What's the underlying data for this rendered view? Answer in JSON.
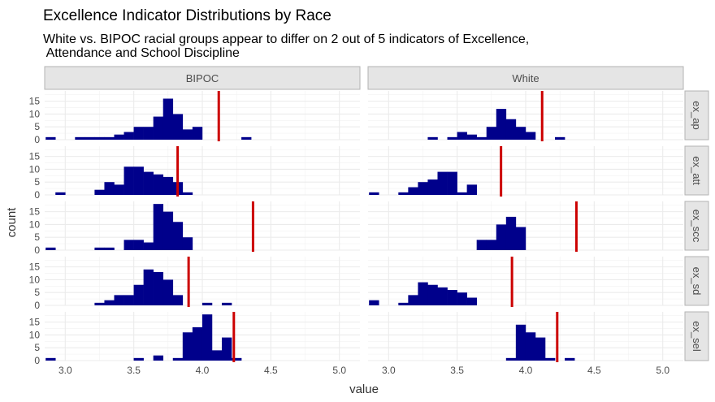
{
  "chart_data": {
    "type": "bar",
    "title": "Excellence Indicator Distributions by Race",
    "subtitle": [
      "White vs. BIPOC racial groups appear to differ on 2 out of 5 indicators of Excellence,",
      " Attendance and School Discipline"
    ],
    "xlabel": "value",
    "ylabel": "count",
    "columns": [
      "BIPOC",
      "White"
    ],
    "rows": [
      "ex_ap",
      "ex_att",
      "ex_scc",
      "ex_sd",
      "ex_sel"
    ],
    "xlim": [
      2.85,
      5.15
    ],
    "ylim": [
      0,
      19
    ],
    "x_ticks": [
      3.0,
      3.5,
      4.0,
      4.5,
      5.0
    ],
    "x_tick_labels": [
      "3.0",
      "3.5",
      "4.0",
      "4.5",
      "5.0"
    ],
    "y_ticks": [
      0,
      5,
      10,
      15
    ],
    "bin_width": 0.0714,
    "bin_start": 2.857,
    "grid": true,
    "bar_color": "#00008B",
    "mean_line_color": "#CC0000",
    "panels": [
      {
        "row": "ex_ap",
        "col": "BIPOC",
        "mean": 4.12,
        "counts": [
          1,
          0,
          0,
          1,
          1,
          1,
          1,
          2,
          3,
          5,
          5,
          9,
          16,
          10,
          4,
          5,
          0,
          0,
          0,
          0,
          1,
          0,
          0
        ]
      },
      {
        "row": "ex_ap",
        "col": "White",
        "mean": 4.12,
        "counts": [
          0,
          0,
          0,
          0,
          0,
          0,
          1,
          0,
          1,
          3,
          2,
          1,
          5,
          12,
          8,
          5,
          3,
          0,
          0,
          1,
          0,
          0,
          0
        ]
      },
      {
        "row": "ex_att",
        "col": "BIPOC",
        "mean": 3.82,
        "counts": [
          0,
          1,
          0,
          0,
          0,
          2,
          5,
          4,
          11,
          11,
          9,
          8,
          7,
          5,
          1,
          0,
          0,
          0,
          0,
          0,
          0,
          0,
          0
        ]
      },
      {
        "row": "ex_att",
        "col": "White",
        "mean": 3.82,
        "counts": [
          1,
          0,
          0,
          1,
          3,
          5,
          6,
          9,
          9,
          1,
          4,
          0,
          0,
          0,
          0,
          0,
          0,
          0,
          0,
          0,
          0,
          0,
          0
        ]
      },
      {
        "row": "ex_scc",
        "col": "BIPOC",
        "mean": 4.37,
        "counts": [
          1,
          0,
          0,
          0,
          0,
          1,
          1,
          0,
          4,
          4,
          3,
          18,
          15,
          11,
          5,
          0,
          0,
          0,
          0,
          0,
          0,
          0,
          0
        ]
      },
      {
        "row": "ex_scc",
        "col": "White",
        "mean": 4.37,
        "counts": [
          0,
          0,
          0,
          0,
          0,
          0,
          0,
          0,
          0,
          0,
          0,
          4,
          4,
          10,
          13,
          9,
          0,
          0,
          0,
          0,
          0,
          0,
          0
        ]
      },
      {
        "row": "ex_sd",
        "col": "BIPOC",
        "mean": 3.9,
        "counts": [
          0,
          0,
          0,
          0,
          0,
          1,
          2,
          4,
          4,
          8,
          14,
          13,
          10,
          4,
          0,
          0,
          1,
          0,
          1,
          0,
          0,
          0,
          0
        ]
      },
      {
        "row": "ex_sd",
        "col": "White",
        "mean": 3.9,
        "counts": [
          2,
          0,
          0,
          1,
          4,
          9,
          8,
          7,
          6,
          5,
          3,
          0,
          0,
          0,
          0,
          0,
          0,
          0,
          0,
          0,
          0,
          0,
          0
        ]
      },
      {
        "row": "ex_sel",
        "col": "BIPOC",
        "mean": 4.23,
        "counts": [
          1,
          0,
          0,
          0,
          0,
          0,
          0,
          0,
          0,
          1,
          0,
          2,
          0,
          1,
          11,
          13,
          18,
          4,
          9,
          1,
          0,
          0,
          0
        ]
      },
      {
        "row": "ex_sel",
        "col": "White",
        "mean": 4.23,
        "counts": [
          0,
          0,
          0,
          0,
          0,
          0,
          0,
          0,
          0,
          0,
          0,
          0,
          0,
          0,
          1,
          14,
          11,
          9,
          1,
          0,
          1,
          0,
          0
        ]
      }
    ]
  }
}
